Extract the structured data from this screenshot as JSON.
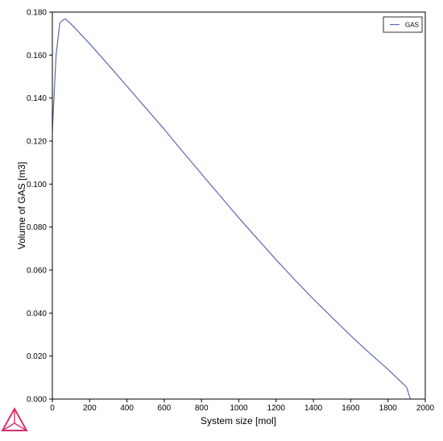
{
  "chart_data": {
    "type": "line",
    "title": "",
    "xlabel": "System size [mol]",
    "ylabel": "Volume of GAS [m3]",
    "xlim": [
      0,
      2000
    ],
    "ylim": [
      0,
      0.18
    ],
    "x_ticks": [
      "0",
      "200",
      "400",
      "600",
      "800",
      "1000",
      "1200",
      "1400",
      "1600",
      "1800",
      "2000"
    ],
    "y_ticks": [
      "0.000",
      "0.020",
      "0.040",
      "0.060",
      "0.080",
      "0.100",
      "0.120",
      "0.140",
      "0.160",
      "0.180"
    ],
    "grid": false,
    "legend_position": "top-right",
    "series": [
      {
        "name": "GAS",
        "color": "#5a6aae",
        "x": [
          0,
          20,
          40,
          60,
          70,
          100,
          200,
          300,
          400,
          500,
          600,
          700,
          800,
          900,
          1000,
          1100,
          1200,
          1300,
          1400,
          1500,
          1600,
          1700,
          1800,
          1900,
          1920
        ],
        "y": [
          0.125,
          0.16,
          0.175,
          0.1765,
          0.1768,
          0.1745,
          0.1653,
          0.1555,
          0.1455,
          0.1355,
          0.1255,
          0.115,
          0.1047,
          0.0945,
          0.0843,
          0.0745,
          0.0648,
          0.0555,
          0.0465,
          0.038,
          0.0295,
          0.0215,
          0.0138,
          0.0055,
          0.0
        ]
      }
    ]
  },
  "logo": {
    "icon": "thermo-calc-triangle-logo",
    "color": "#d6336c"
  }
}
